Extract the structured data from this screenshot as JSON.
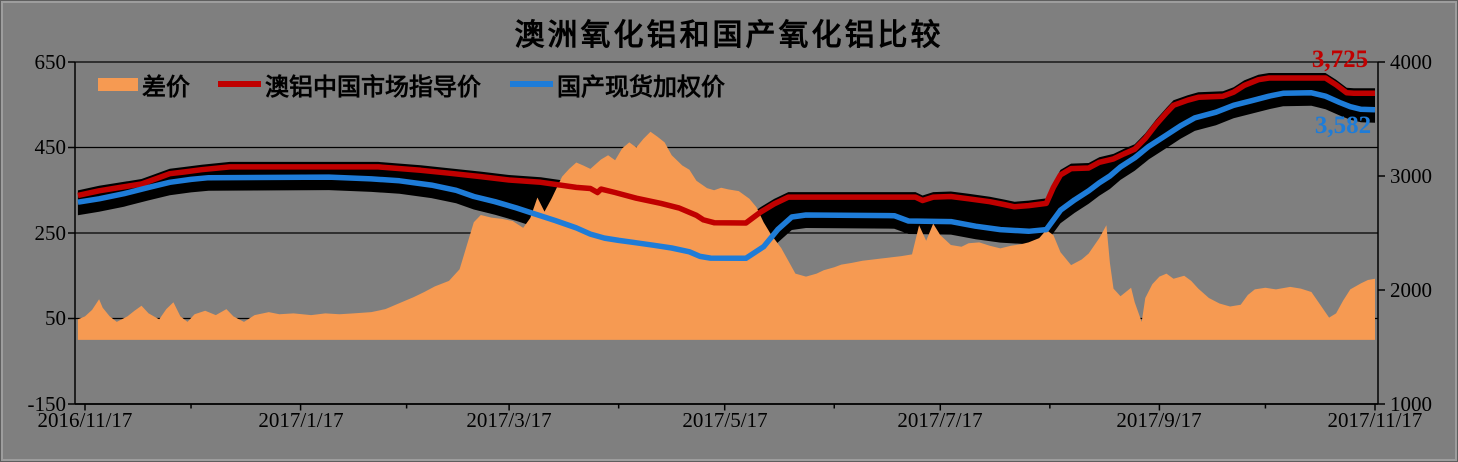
{
  "title": "澳洲氧化铝和国产氧化铝比较",
  "colors": {
    "background": "#7f7f7f",
    "spread_area": "#F69A52",
    "aus_guide_line": "#C00000",
    "domestic_spot_line": "#1E7CD8",
    "shadow_band": "#000000",
    "axis": "#000000"
  },
  "legend": {
    "items": [
      {
        "label": "差价",
        "type": "area",
        "color": "#F69A52"
      },
      {
        "label": "澳铝中国市场指导价",
        "type": "line",
        "color": "#C00000"
      },
      {
        "label": "国产现货加权价",
        "type": "line",
        "color": "#1E7CD8"
      }
    ]
  },
  "annotations": {
    "aus_final": "3,725",
    "domestic_final": "3,582"
  },
  "chart_data": {
    "type": "combo: area + 2 lines",
    "title": "澳洲氧化铝和国产氧化铝比较",
    "grid": "horizontal gridlines at left-axis ticks",
    "legend_position": "top-left inside chart",
    "x_axis": {
      "unit": "days since 2016/11/17",
      "tick_labels": [
        "2016/11/17",
        "2017/1/17",
        "2017/3/17",
        "2017/5/17",
        "2017/7/17",
        "2017/9/17",
        "2017/11/17"
      ],
      "tick_days": [
        0,
        61,
        120,
        181,
        242,
        304,
        365
      ],
      "minor_tick_days": [
        0,
        30,
        61,
        91,
        120,
        151,
        181,
        212,
        242,
        273,
        304,
        334,
        365
      ]
    },
    "y_left": {
      "applies_to": "差价",
      "labels": [
        "650",
        "450",
        "250",
        "50",
        "-150"
      ],
      "tick_values": [
        650,
        450,
        250,
        50,
        -150
      ],
      "min": -150,
      "max": 650
    },
    "y_right": {
      "applies_to": "price lines",
      "labels": [
        "4000",
        "3000",
        "2000",
        "1000"
      ],
      "tick_values": [
        4000,
        3000,
        2000,
        1000
      ],
      "min": 1000,
      "max": 4000
    },
    "series": [
      {
        "name": "差价",
        "type": "area",
        "axis": "left",
        "color": "#F69A52",
        "baseline": 0,
        "points": [
          [
            -2,
            48
          ],
          [
            0,
            55
          ],
          [
            2,
            70
          ],
          [
            4,
            95
          ],
          [
            5,
            75
          ],
          [
            7,
            55
          ],
          [
            9,
            42
          ],
          [
            12,
            55
          ],
          [
            14,
            68
          ],
          [
            16,
            80
          ],
          [
            18,
            62
          ],
          [
            21,
            48
          ],
          [
            23,
            72
          ],
          [
            25,
            88
          ],
          [
            27,
            55
          ],
          [
            29,
            42
          ],
          [
            31,
            60
          ],
          [
            34,
            68
          ],
          [
            37,
            58
          ],
          [
            40,
            72
          ],
          [
            42,
            55
          ],
          [
            45,
            42
          ],
          [
            48,
            58
          ],
          [
            52,
            65
          ],
          [
            55,
            60
          ],
          [
            59,
            62
          ],
          [
            64,
            58
          ],
          [
            68,
            62
          ],
          [
            72,
            60
          ],
          [
            76,
            62
          ],
          [
            81,
            65
          ],
          [
            85,
            72
          ],
          [
            89,
            86
          ],
          [
            93,
            100
          ],
          [
            96,
            112
          ],
          [
            99,
            125
          ],
          [
            103,
            138
          ],
          [
            106,
            165
          ],
          [
            108,
            220
          ],
          [
            110,
            275
          ],
          [
            112,
            292
          ],
          [
            115,
            286
          ],
          [
            118,
            283
          ],
          [
            121,
            278
          ],
          [
            124,
            262
          ],
          [
            126,
            285
          ],
          [
            128,
            333
          ],
          [
            130,
            300
          ],
          [
            132,
            330
          ],
          [
            135,
            382
          ],
          [
            137,
            400
          ],
          [
            139,
            415
          ],
          [
            141,
            408
          ],
          [
            143,
            400
          ],
          [
            146,
            422
          ],
          [
            148,
            432
          ],
          [
            150,
            420
          ],
          [
            152,
            448
          ],
          [
            154,
            462
          ],
          [
            156,
            450
          ],
          [
            158,
            470
          ],
          [
            160,
            487
          ],
          [
            162,
            475
          ],
          [
            164,
            462
          ],
          [
            166,
            432
          ],
          [
            169,
            408
          ],
          [
            171,
            398
          ],
          [
            173,
            372
          ],
          [
            176,
            355
          ],
          [
            178,
            350
          ],
          [
            180,
            356
          ],
          [
            182,
            352
          ],
          [
            185,
            348
          ],
          [
            188,
            330
          ],
          [
            190,
            310
          ],
          [
            192,
            275
          ],
          [
            194,
            248
          ],
          [
            197,
            215
          ],
          [
            199,
            185
          ],
          [
            201,
            155
          ],
          [
            204,
            148
          ],
          [
            207,
            155
          ],
          [
            209,
            163
          ],
          [
            212,
            170
          ],
          [
            214,
            176
          ],
          [
            217,
            180
          ],
          [
            220,
            185
          ],
          [
            223,
            188
          ],
          [
            225,
            190
          ],
          [
            228,
            193
          ],
          [
            231,
            196
          ],
          [
            234,
            200
          ],
          [
            236,
            268
          ],
          [
            238,
            232
          ],
          [
            240,
            272
          ],
          [
            242,
            245
          ],
          [
            245,
            222
          ],
          [
            248,
            218
          ],
          [
            250,
            226
          ],
          [
            253,
            228
          ],
          [
            256,
            220
          ],
          [
            259,
            214
          ],
          [
            262,
            220
          ],
          [
            265,
            224
          ],
          [
            267,
            228
          ],
          [
            270,
            238
          ],
          [
            272,
            257
          ],
          [
            274,
            245
          ],
          [
            276,
            205
          ],
          [
            279,
            175
          ],
          [
            282,
            188
          ],
          [
            284,
            202
          ],
          [
            287,
            238
          ],
          [
            289,
            268
          ],
          [
            290,
            180
          ],
          [
            291,
            120
          ],
          [
            293,
            102
          ],
          [
            296,
            122
          ],
          [
            297,
            88
          ],
          [
            299,
            42
          ],
          [
            300,
            98
          ],
          [
            302,
            130
          ],
          [
            304,
            148
          ],
          [
            306,
            155
          ],
          [
            308,
            143
          ],
          [
            311,
            150
          ],
          [
            313,
            138
          ],
          [
            315,
            120
          ],
          [
            318,
            98
          ],
          [
            321,
            85
          ],
          [
            324,
            78
          ],
          [
            327,
            82
          ],
          [
            329,
            105
          ],
          [
            331,
            118
          ],
          [
            334,
            122
          ],
          [
            337,
            118
          ],
          [
            341,
            124
          ],
          [
            344,
            120
          ],
          [
            347,
            112
          ],
          [
            349,
            88
          ],
          [
            352,
            52
          ],
          [
            354,
            62
          ],
          [
            356,
            92
          ],
          [
            358,
            118
          ],
          [
            361,
            132
          ],
          [
            363,
            140
          ],
          [
            365,
            143
          ]
        ]
      },
      {
        "name": "澳铝中国市场指导价",
        "type": "line",
        "axis": "right",
        "color": "#C00000",
        "end_label": "3,725",
        "points": [
          [
            -2,
            2830
          ],
          [
            4,
            2870
          ],
          [
            10,
            2900
          ],
          [
            16,
            2930
          ],
          [
            20,
            2975
          ],
          [
            24,
            3020
          ],
          [
            28,
            3035
          ],
          [
            33,
            3055
          ],
          [
            41,
            3080
          ],
          [
            83,
            3080
          ],
          [
            95,
            3050
          ],
          [
            103,
            3025
          ],
          [
            112,
            2995
          ],
          [
            120,
            2965
          ],
          [
            129,
            2945
          ],
          [
            139,
            2900
          ],
          [
            143,
            2890
          ],
          [
            145,
            2855
          ],
          [
            146,
            2885
          ],
          [
            150,
            2855
          ],
          [
            156,
            2805
          ],
          [
            163,
            2760
          ],
          [
            168,
            2720
          ],
          [
            173,
            2655
          ],
          [
            175,
            2615
          ],
          [
            178,
            2590
          ],
          [
            187,
            2588
          ],
          [
            191,
            2680
          ],
          [
            195,
            2755
          ],
          [
            199,
            2815
          ],
          [
            235,
            2815
          ],
          [
            237,
            2785
          ],
          [
            240,
            2815
          ],
          [
            245,
            2820
          ],
          [
            250,
            2800
          ],
          [
            256,
            2775
          ],
          [
            260,
            2750
          ],
          [
            263,
            2730
          ],
          [
            267,
            2740
          ],
          [
            272,
            2760
          ],
          [
            274,
            2900
          ],
          [
            276,
            3010
          ],
          [
            279,
            3065
          ],
          [
            284,
            3070
          ],
          [
            287,
            3120
          ],
          [
            291,
            3150
          ],
          [
            294,
            3195
          ],
          [
            297,
            3235
          ],
          [
            300,
            3330
          ],
          [
            303,
            3450
          ],
          [
            306,
            3555
          ],
          [
            308,
            3620
          ],
          [
            312,
            3665
          ],
          [
            315,
            3690
          ],
          [
            322,
            3700
          ],
          [
            325,
            3735
          ],
          [
            328,
            3795
          ],
          [
            332,
            3845
          ],
          [
            335,
            3860
          ],
          [
            351,
            3860
          ],
          [
            354,
            3800
          ],
          [
            357,
            3730
          ],
          [
            359,
            3725
          ],
          [
            365,
            3725
          ]
        ]
      },
      {
        "name": "国产现货加权价",
        "type": "line",
        "axis": "right",
        "color": "#1E7CD8",
        "end_label": "3,582",
        "points": [
          [
            -2,
            2770
          ],
          [
            4,
            2800
          ],
          [
            11,
            2845
          ],
          [
            18,
            2900
          ],
          [
            24,
            2945
          ],
          [
            30,
            2970
          ],
          [
            35,
            2985
          ],
          [
            69,
            2990
          ],
          [
            81,
            2975
          ],
          [
            89,
            2958
          ],
          [
            98,
            2920
          ],
          [
            105,
            2875
          ],
          [
            110,
            2820
          ],
          [
            116,
            2775
          ],
          [
            122,
            2720
          ],
          [
            127,
            2670
          ],
          [
            133,
            2610
          ],
          [
            139,
            2545
          ],
          [
            143,
            2490
          ],
          [
            147,
            2455
          ],
          [
            151,
            2435
          ],
          [
            157,
            2410
          ],
          [
            161,
            2392
          ],
          [
            166,
            2368
          ],
          [
            171,
            2335
          ],
          [
            174,
            2295
          ],
          [
            177,
            2280
          ],
          [
            187,
            2278
          ],
          [
            192,
            2380
          ],
          [
            196,
            2530
          ],
          [
            200,
            2640
          ],
          [
            204,
            2658
          ],
          [
            229,
            2652
          ],
          [
            233,
            2605
          ],
          [
            245,
            2600
          ],
          [
            252,
            2560
          ],
          [
            259,
            2530
          ],
          [
            267,
            2515
          ],
          [
            272,
            2530
          ],
          [
            276,
            2700
          ],
          [
            280,
            2790
          ],
          [
            284,
            2870
          ],
          [
            287,
            2940
          ],
          [
            290,
            3000
          ],
          [
            293,
            3080
          ],
          [
            297,
            3160
          ],
          [
            301,
            3260
          ],
          [
            306,
            3360
          ],
          [
            310,
            3440
          ],
          [
            314,
            3510
          ],
          [
            320,
            3560
          ],
          [
            325,
            3620
          ],
          [
            330,
            3660
          ],
          [
            335,
            3700
          ],
          [
            339,
            3725
          ],
          [
            347,
            3730
          ],
          [
            351,
            3700
          ],
          [
            355,
            3645
          ],
          [
            358,
            3608
          ],
          [
            361,
            3585
          ],
          [
            365,
            3582
          ]
        ]
      }
    ]
  }
}
